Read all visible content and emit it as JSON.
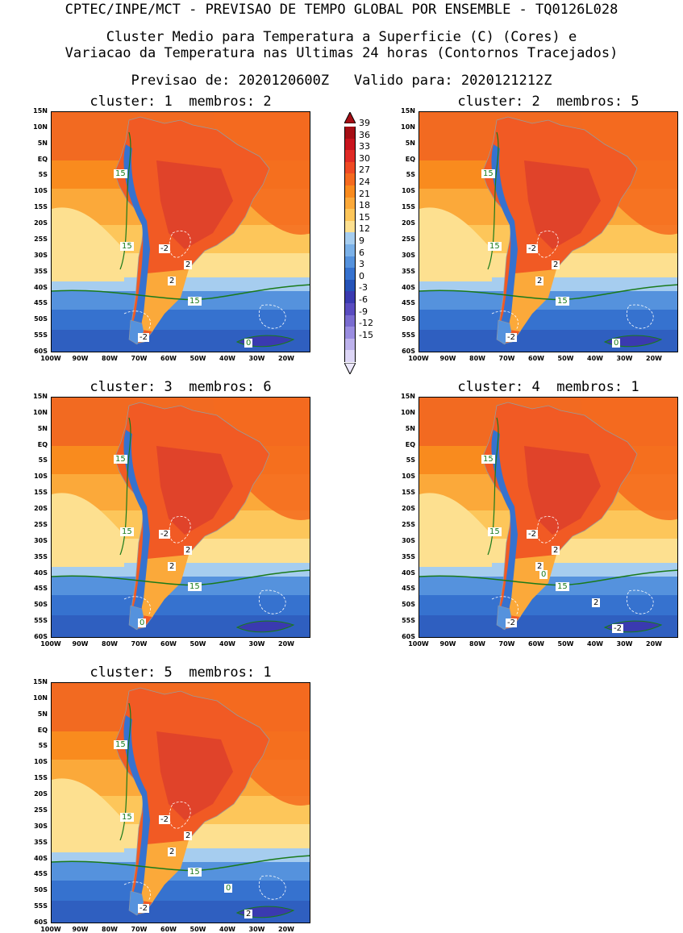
{
  "header": {
    "title": "CPTEC/INPE/MCT - PREVISAO DE TEMPO GLOBAL POR ENSEMBLE - TQ0126L028",
    "subtitle_line1": "Cluster Medio para Temperatura a Superficie (C) (Cores) e",
    "subtitle_line2": "Variacao da Temperatura nas Ultimas 24 horas (Contornos Tracejados)",
    "forecast_line": "Previsao de: 2020120600Z   Valido para: 2020121212Z"
  },
  "panels": [
    {
      "title": "cluster: 1  membros: 2",
      "labels": [
        "15",
        "15",
        "15",
        "-2",
        "2",
        "2",
        "-2",
        "0"
      ]
    },
    {
      "title": "cluster: 2  membros: 5",
      "labels": [
        "15",
        "15",
        "15",
        "-2",
        "2",
        "2",
        "-2",
        "0"
      ]
    },
    {
      "title": "cluster: 3  membros: 6",
      "labels": [
        "15",
        "15",
        "15",
        "-2",
        "2",
        "2",
        "0"
      ]
    },
    {
      "title": "cluster: 4  membros: 1",
      "labels": [
        "15",
        "15",
        "15",
        "-2",
        "2",
        "2",
        "-2",
        "-2",
        "2",
        "0"
      ]
    },
    {
      "title": "cluster: 5  membros: 1",
      "labels": [
        "15",
        "15",
        "15",
        "-2",
        "2",
        "2",
        "-2",
        "2",
        "0"
      ]
    }
  ],
  "axes": {
    "lat_ticks": [
      "15N",
      "10N",
      "5N",
      "EQ",
      "5S",
      "10S",
      "15S",
      "20S",
      "25S",
      "30S",
      "35S",
      "40S",
      "45S",
      "50S",
      "55S",
      "60S"
    ],
    "lon_ticks": [
      "100W",
      "90W",
      "80W",
      "70W",
      "60W",
      "50W",
      "40W",
      "30W",
      "20W"
    ]
  },
  "colorbar": {
    "labels": [
      "39",
      "36",
      "33",
      "30",
      "27",
      "24",
      "21",
      "18",
      "15",
      "12",
      "9",
      "6",
      "3",
      "0",
      "-3",
      "-6",
      "-9",
      "-12",
      "-15"
    ],
    "colors": [
      "#a50f15",
      "#c8141e",
      "#e02b26",
      "#ef4a24",
      "#f56a1f",
      "#f98b1e",
      "#fba93a",
      "#fdc65a",
      "#fde090",
      "#a6cdef",
      "#7bb1e8",
      "#5592dd",
      "#3672cf",
      "#2553b8",
      "#3a3ab0",
      "#5a4cc0",
      "#7a6cd0",
      "#9a8de0",
      "#bdb2ec",
      "#ddd6f6"
    ],
    "top_color": "#a50f15",
    "bottom_color": "#ece8fb"
  }
}
